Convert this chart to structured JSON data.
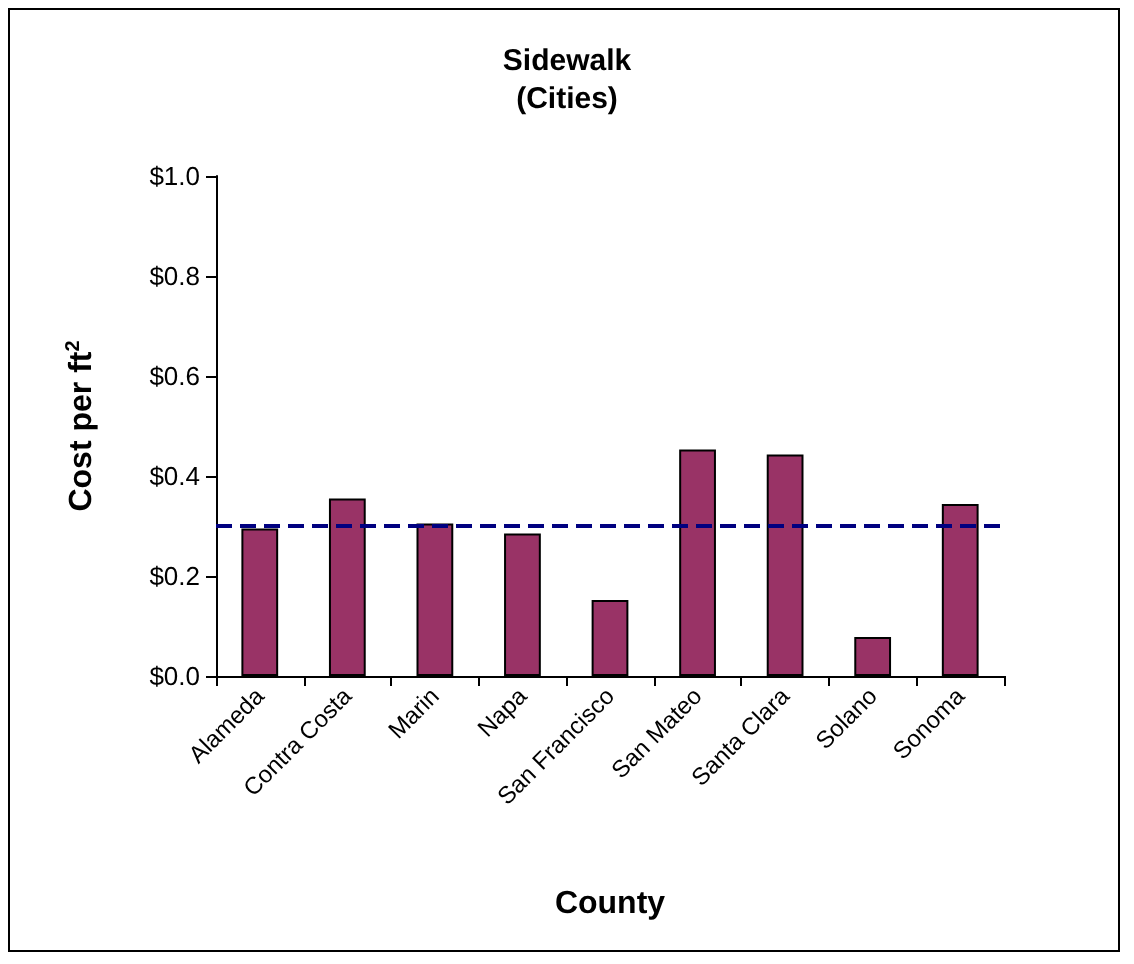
{
  "chart_data": {
    "type": "bar",
    "title": "Sidewalk",
    "subtitle": "(Cities)",
    "xlabel": "County",
    "ylabel": "Cost per ft$^{2}$",
    "categories": [
      "Alameda",
      "Contra Costa",
      "Marin",
      "Napa",
      "San Francisco",
      "San Mateo",
      "Santa Clara",
      "Solano",
      "Sonoma"
    ],
    "values": [
      0.295,
      0.355,
      0.305,
      0.285,
      0.152,
      0.453,
      0.443,
      0.078,
      0.344
    ],
    "color": "#993366",
    "ylim": [
      0,
      1
    ],
    "yticks": [
      {
        "value": 0,
        "label": "$0.0"
      },
      {
        "value": 0.2,
        "label": "$0.2"
      },
      {
        "value": 0.4,
        "label": "$0.4"
      },
      {
        "value": 0.6,
        "label": "$0.6"
      },
      {
        "value": 0.8,
        "label": "$0.8"
      },
      {
        "value": 1,
        "label": "$1.0"
      }
    ],
    "ref_lines": [
      {
        "axis": "y",
        "value": 0.3,
        "color": "#000080",
        "line_style": "dashed"
      }
    ],
    "grid": false
  }
}
